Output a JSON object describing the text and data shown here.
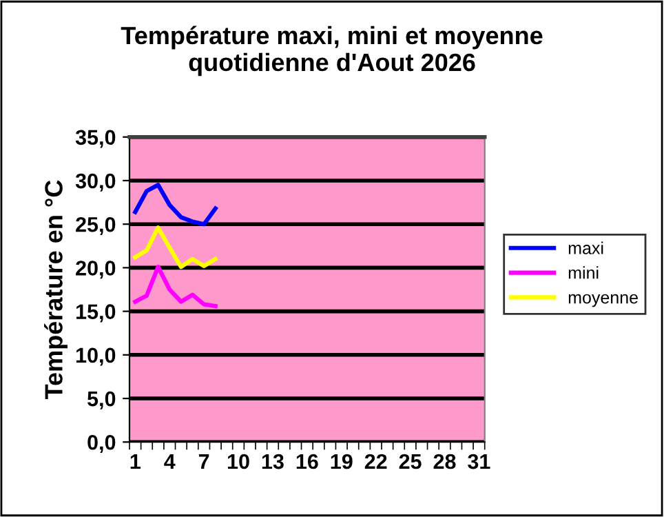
{
  "chart_data": {
    "type": "line",
    "title": "Température maxi, mini et moyenne\nquotidienne d'Aout 2026",
    "ylabel": "Température en °C",
    "categories": [
      "1",
      null,
      null,
      "4",
      null,
      null,
      "7",
      null,
      null,
      "10",
      null,
      null,
      "13",
      null,
      null,
      "16",
      null,
      null,
      "19",
      null,
      null,
      "22",
      null,
      null,
      "25",
      null,
      null,
      "28",
      null,
      null,
      "31"
    ],
    "series": [
      {
        "name": "maxi",
        "color": "#0000ff",
        "values": [
          26.4,
          28.8,
          29.5,
          27.2,
          25.8,
          25.3,
          25.0,
          26.8,
          null,
          null,
          null,
          null,
          null,
          null,
          null,
          null,
          null,
          null,
          null,
          null,
          null,
          null,
          null,
          null,
          null,
          null,
          null,
          null,
          null,
          null,
          null
        ]
      },
      {
        "name": "mini",
        "color": "#ff00ff",
        "values": [
          16.1,
          16.8,
          20.1,
          17.5,
          16.1,
          16.9,
          15.8,
          15.6,
          null,
          null,
          null,
          null,
          null,
          null,
          null,
          null,
          null,
          null,
          null,
          null,
          null,
          null,
          null,
          null,
          null,
          null,
          null,
          null,
          null,
          null,
          null
        ]
      },
      {
        "name": "moyenne",
        "color": "#ffff00",
        "values": [
          21.2,
          22.0,
          24.6,
          22.3,
          20.1,
          21.0,
          20.2,
          21.0,
          null,
          null,
          null,
          null,
          null,
          null,
          null,
          null,
          null,
          null,
          null,
          null,
          null,
          null,
          null,
          null,
          null,
          null,
          null,
          null,
          null,
          null,
          null
        ]
      }
    ],
    "ylim": [
      0,
      35
    ],
    "yticks": [
      {
        "value": 0,
        "label": "0,0"
      },
      {
        "value": 5,
        "label": "5,0"
      },
      {
        "value": 10,
        "label": "10,0"
      },
      {
        "value": 15,
        "label": "15,0"
      },
      {
        "value": 20,
        "label": "20,0"
      },
      {
        "value": 25,
        "label": "25,0"
      },
      {
        "value": 30,
        "label": "30,0"
      },
      {
        "value": 35,
        "label": "35,0"
      }
    ],
    "grid": "y",
    "legend": "right",
    "marker": "none",
    "line_style": "solid"
  }
}
